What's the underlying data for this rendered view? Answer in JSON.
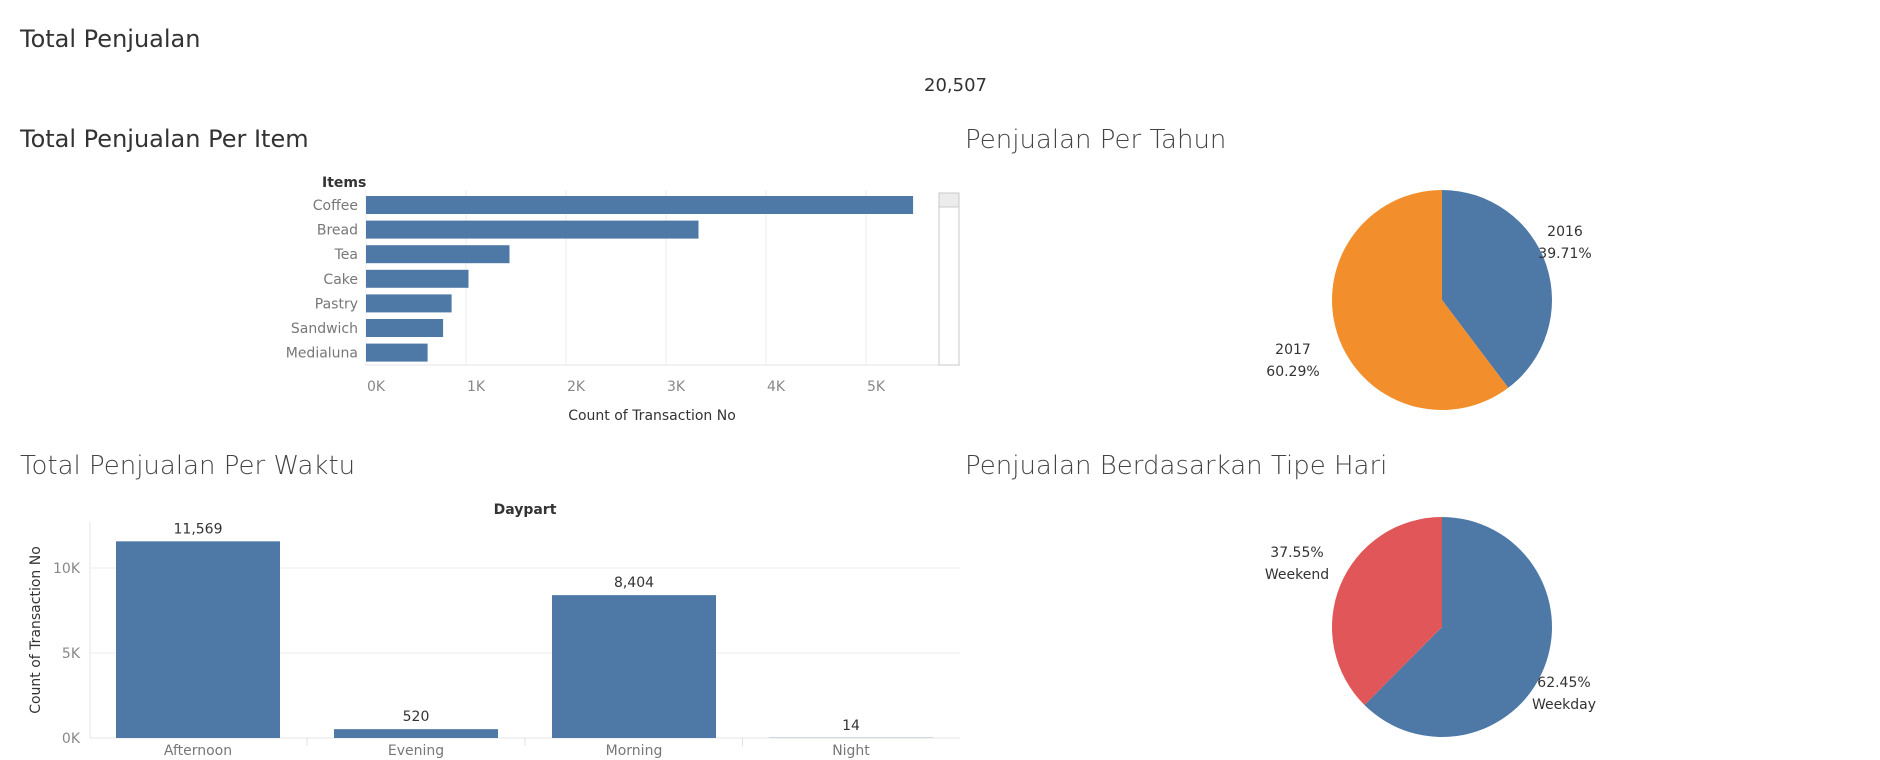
{
  "kpi": {
    "title": "Total Penjualan",
    "value": "20,507"
  },
  "charts_titles": {
    "items": "Total Penjualan Per Item",
    "year": "Penjualan Per Tahun",
    "daypart": "Total Penjualan Per Waktu",
    "daytype": "Penjualan Berdasarkan Tipe Hari"
  },
  "colors": {
    "blue": "#4e79a7",
    "orange": "#f28e2b",
    "red": "#e15759",
    "grid": "#ececec"
  },
  "chart_data": [
    {
      "id": "items",
      "type": "bar",
      "orientation": "horizontal",
      "header": "Items",
      "categories": [
        "Coffee",
        "Bread",
        "Tea",
        "Cake",
        "Pastry",
        "Sandwich",
        "Medialuna"
      ],
      "values": [
        5471,
        3325,
        1435,
        1025,
        856,
        771,
        616
      ],
      "xlabel": "Count of Transaction No",
      "xticks": [
        "0K",
        "1K",
        "2K",
        "3K",
        "4K",
        "5K"
      ],
      "xlim": [
        0,
        6000
      ],
      "grid": true
    },
    {
      "id": "year",
      "type": "pie",
      "slices": [
        {
          "label": "2016",
          "percent": "39.71%",
          "value": 39.71,
          "color": "#4e79a7"
        },
        {
          "label": "2017",
          "percent": "60.29%",
          "value": 60.29,
          "color": "#f28e2b"
        }
      ]
    },
    {
      "id": "daypart",
      "type": "bar",
      "orientation": "vertical",
      "header": "Daypart",
      "categories": [
        "Afternoon",
        "Evening",
        "Morning",
        "Night"
      ],
      "values": [
        11569,
        520,
        8404,
        14
      ],
      "labels": [
        "11,569",
        "520",
        "8,404",
        "14"
      ],
      "ylabel": "Count of Transaction No",
      "yticks": [
        "0K",
        "5K",
        "10K"
      ],
      "ylim": [
        0,
        13500
      ],
      "grid": true
    },
    {
      "id": "daytype",
      "type": "pie",
      "slices": [
        {
          "label": "Weekday",
          "percent": "62.45%",
          "value": 62.45,
          "color": "#4e79a7"
        },
        {
          "label": "Weekend",
          "percent": "37.55%",
          "value": 37.55,
          "color": "#e15759"
        }
      ]
    }
  ]
}
